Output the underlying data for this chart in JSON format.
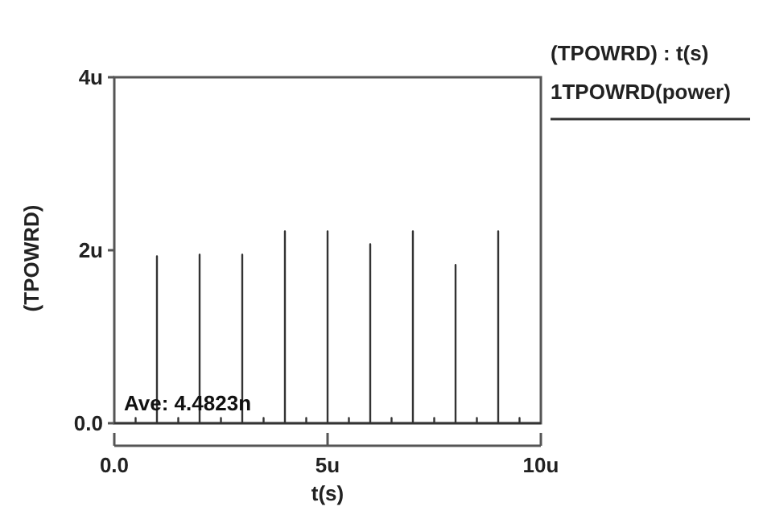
{
  "chart_data": {
    "type": "line",
    "xlabel": "t(s)",
    "ylabel": "(TPOWRD)",
    "legend_title": "(TPOWRD) : t(s)",
    "legend": "top right",
    "annotations": [
      "Ave: 4.4823n"
    ],
    "xlim": [
      0,
      10
    ],
    "xticks": [
      {
        "value": 0,
        "label": "0.0"
      },
      {
        "value": 5,
        "label": "5u"
      },
      {
        "value": 10,
        "label": "10u"
      }
    ],
    "ylim": [
      0,
      4
    ],
    "yticks": [
      {
        "value": 0,
        "label": "0.0"
      },
      {
        "value": 2,
        "label": "2u"
      },
      {
        "value": 4,
        "label": "4u"
      }
    ],
    "grid": false,
    "marker": "none",
    "line_style": "solid",
    "series": [
      {
        "name": "1TPOWRD(power)",
        "color": "#333333",
        "x": [
          0,
          0.5,
          0.5,
          0.5,
          1,
          1,
          1,
          1.5,
          1.5,
          1.5,
          2,
          2,
          2,
          2.5,
          2.5,
          2.5,
          3,
          3,
          3,
          3,
          3,
          3.5,
          3.5,
          3.5,
          4,
          4,
          4,
          4.5,
          4.5,
          4.5,
          5,
          5,
          5,
          5.5,
          5.5,
          5.5,
          6,
          6,
          6,
          6.5,
          6.5,
          6.5,
          7,
          7,
          7,
          7.5,
          7.5,
          7.5,
          8,
          8,
          8,
          8.5,
          8.5,
          8.5,
          9,
          9,
          9,
          9.5,
          9.5,
          9.5,
          10
        ],
        "values": [
          0,
          0,
          0.06,
          0,
          0,
          1.93,
          0,
          0,
          0.06,
          0,
          0,
          1.95,
          0,
          0,
          0.06,
          0,
          0,
          1.95,
          0,
          1.76,
          0,
          0,
          0.06,
          0,
          0,
          2.22,
          0,
          0,
          0.06,
          0,
          0,
          2.22,
          0,
          0,
          0.06,
          0,
          0,
          2.07,
          0,
          0,
          0.06,
          0,
          0,
          2.22,
          0,
          0,
          0.06,
          0,
          0,
          1.83,
          0,
          0,
          0.06,
          0,
          0,
          2.22,
          0,
          0,
          0.06,
          0,
          0
        ]
      }
    ]
  }
}
